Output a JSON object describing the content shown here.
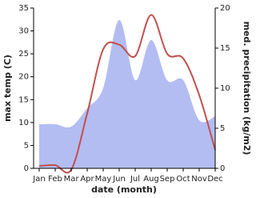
{
  "chart_data": {
    "type": "line",
    "x_label": "date (month)",
    "y_label": "max temp (C)",
    "y2_label": "med. precipitation (kg/m2)",
    "categories": [
      "Jan",
      "Feb",
      "Mar",
      "Apr",
      "May",
      "Jun",
      "Jul",
      "Aug",
      "Sep",
      "Oct",
      "Nov",
      "Dec"
    ],
    "ylim": [
      0,
      35
    ],
    "yticks": [
      0,
      5,
      10,
      15,
      20,
      25,
      30,
      35
    ],
    "y2lim": [
      0,
      20
    ],
    "y2ticks": [
      0,
      5,
      10,
      15,
      20
    ],
    "series": [
      {
        "name": "med. precipitation",
        "type": "area",
        "axis": "y2",
        "color": "#b3bdf2",
        "values": [
          5.5,
          5.5,
          5.2,
          7.5,
          10,
          18.5,
          11,
          16,
          11,
          11,
          6,
          6.5
        ]
      },
      {
        "name": "max temp",
        "type": "line",
        "color": "#c0504d",
        "values": [
          0.5,
          0.7,
          -0.3,
          12,
          26,
          27,
          24.5,
          33.5,
          25,
          24,
          16,
          4
        ]
      }
    ]
  }
}
